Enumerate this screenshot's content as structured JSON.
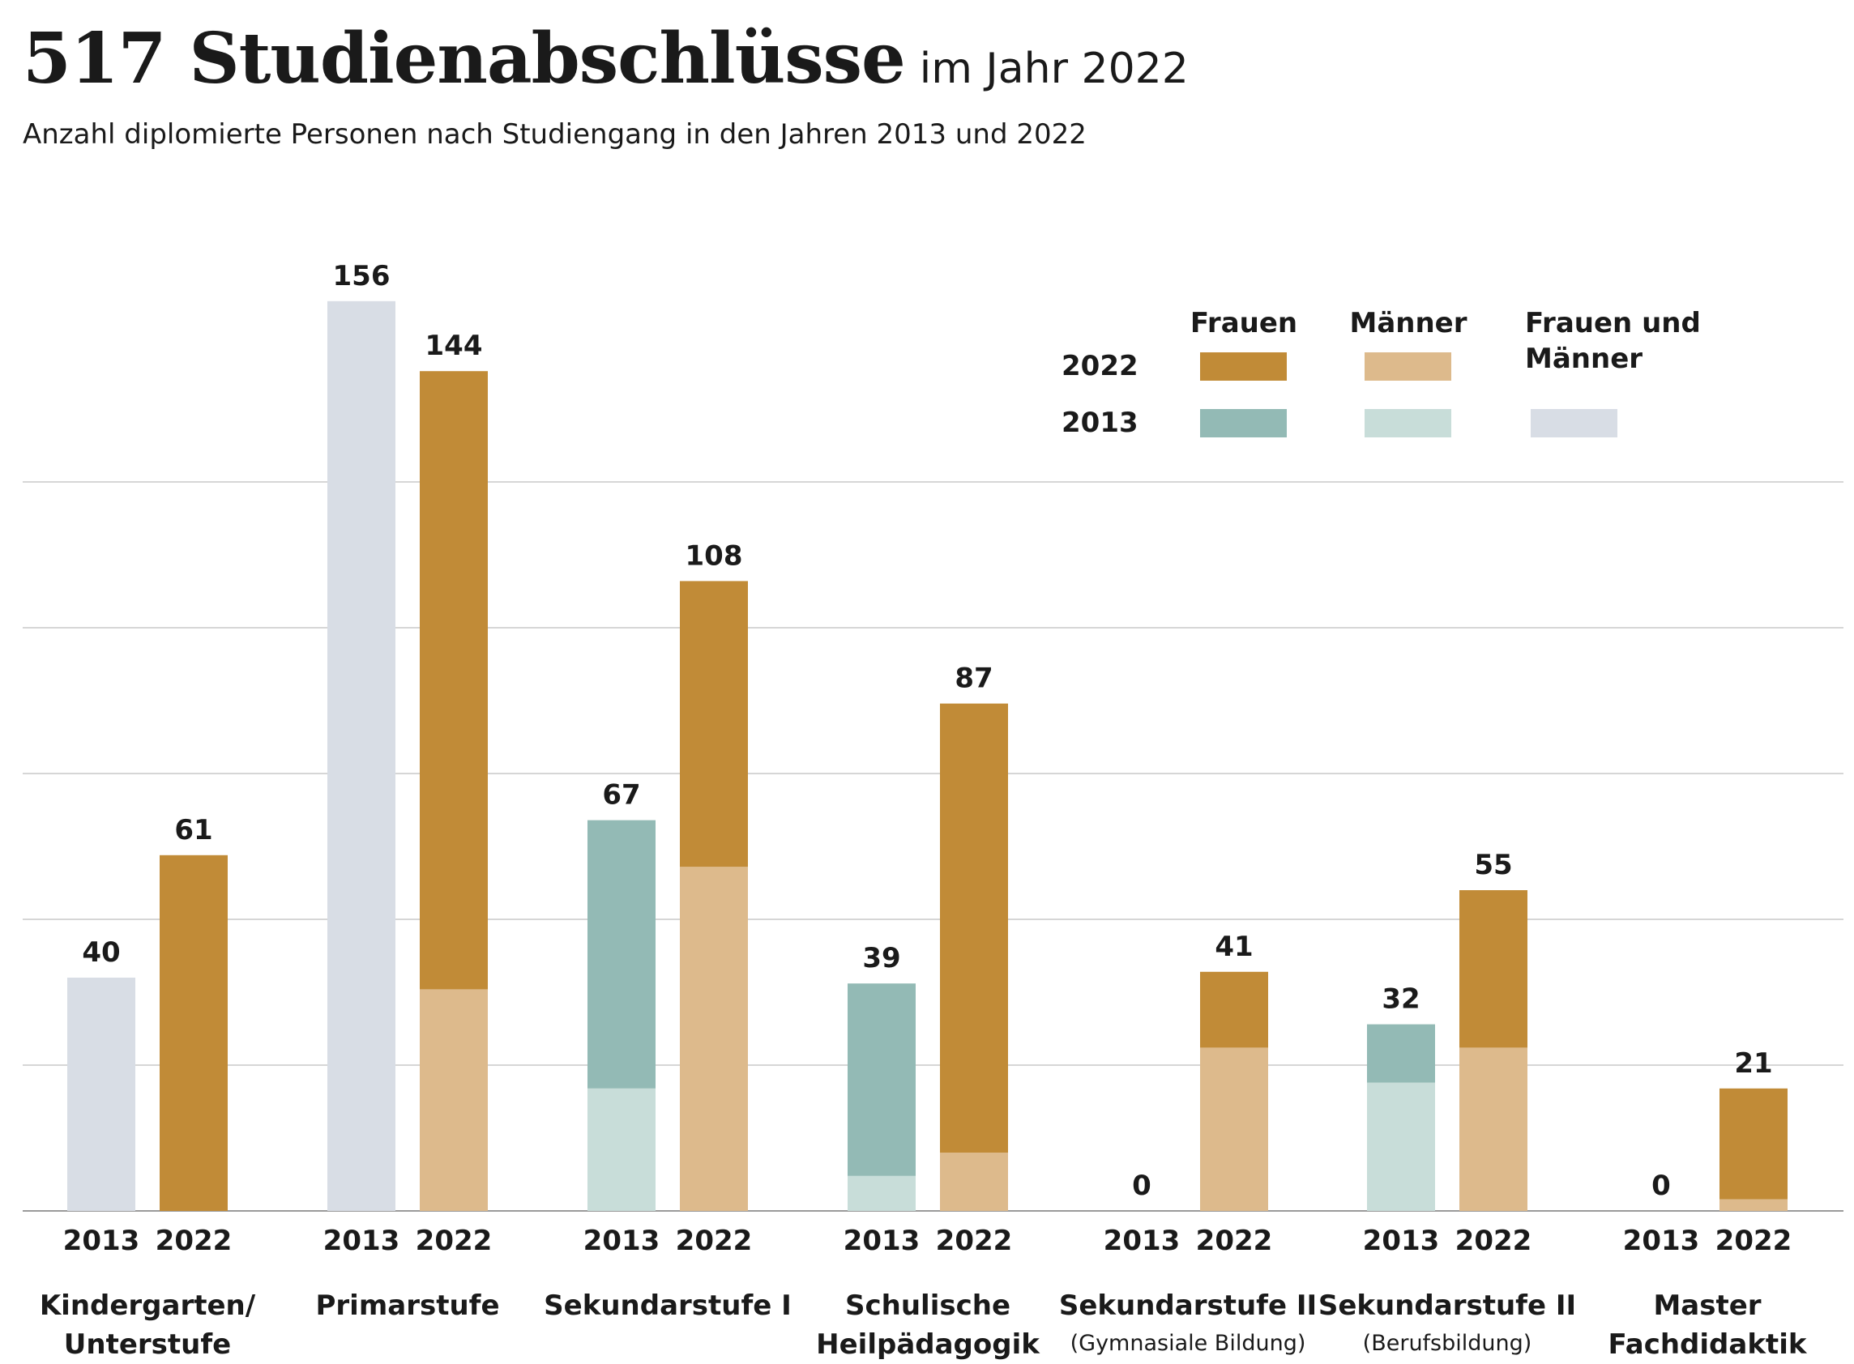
{
  "title": "517 Studienabschlüsse",
  "title_suffix": "im Jahr 2022",
  "subtitle": "Anzahl diplomierte Personen nach Studiengang in den Jahren 2013 und 2022",
  "colors": {
    "frauen_2022": "#c18b37",
    "maenner_2022": "#ddba8c",
    "frauen_2013": "#93bab5",
    "maenner_2013": "#c8ddd9",
    "total_2013": "#d8dde5",
    "grid": "#c8c8c8",
    "axis": "#9a9a9a"
  },
  "legend": {
    "col_frauen": "Frauen",
    "col_maenner": "Männer",
    "col_total_line1": "Frauen und",
    "col_total_line2": "Männer",
    "row_2022": "2022",
    "row_2013": "2013"
  },
  "chart_data": {
    "type": "bar",
    "stacked": true,
    "ylim": [
      0,
      160
    ],
    "grid": true,
    "gridlines": [
      0,
      25,
      50,
      75,
      100,
      125
    ],
    "legend_position": "top-right",
    "years": [
      "2013",
      "2022"
    ],
    "categories": [
      {
        "label_lines": [
          "Kindergarten/",
          "Unterstufe"
        ],
        "sublabel": "",
        "2013": {
          "total": 40,
          "frauen": null,
          "maenner": null
        },
        "2022": {
          "total": 61,
          "frauen": 61,
          "maenner": 0
        }
      },
      {
        "label_lines": [
          "Primarstufe"
        ],
        "sublabel": "",
        "2013": {
          "total": 156,
          "frauen": null,
          "maenner": null
        },
        "2022": {
          "total": 144,
          "frauen": 106,
          "maenner": 38
        }
      },
      {
        "label_lines": [
          "Sekundarstufe I"
        ],
        "sublabel": "",
        "2013": {
          "total": 67,
          "frauen": 46,
          "maenner": 21
        },
        "2022": {
          "total": 108,
          "frauen": 49,
          "maenner": 59
        }
      },
      {
        "label_lines": [
          "Schulische",
          "Heilpädagogik"
        ],
        "sublabel": "",
        "2013": {
          "total": 39,
          "frauen": 33,
          "maenner": 6
        },
        "2022": {
          "total": 87,
          "frauen": 77,
          "maenner": 10
        }
      },
      {
        "label_lines": [
          "Sekundarstufe II"
        ],
        "sublabel": "(Gymnasiale Bildung)",
        "2013": {
          "total": 0,
          "frauen": 0,
          "maenner": 0
        },
        "2022": {
          "total": 41,
          "frauen": 13,
          "maenner": 28
        }
      },
      {
        "label_lines": [
          "Sekundarstufe II"
        ],
        "sublabel": "(Berufsbildung)",
        "2013": {
          "total": 32,
          "frauen": 10,
          "maenner": 22
        },
        "2022": {
          "total": 55,
          "frauen": 27,
          "maenner": 28
        }
      },
      {
        "label_lines": [
          "Master",
          "Fachdidaktik"
        ],
        "sublabel": "",
        "2013": {
          "total": 0,
          "frauen": 0,
          "maenner": 0
        },
        "2022": {
          "total": 21,
          "frauen": 19,
          "maenner": 2
        }
      }
    ]
  }
}
